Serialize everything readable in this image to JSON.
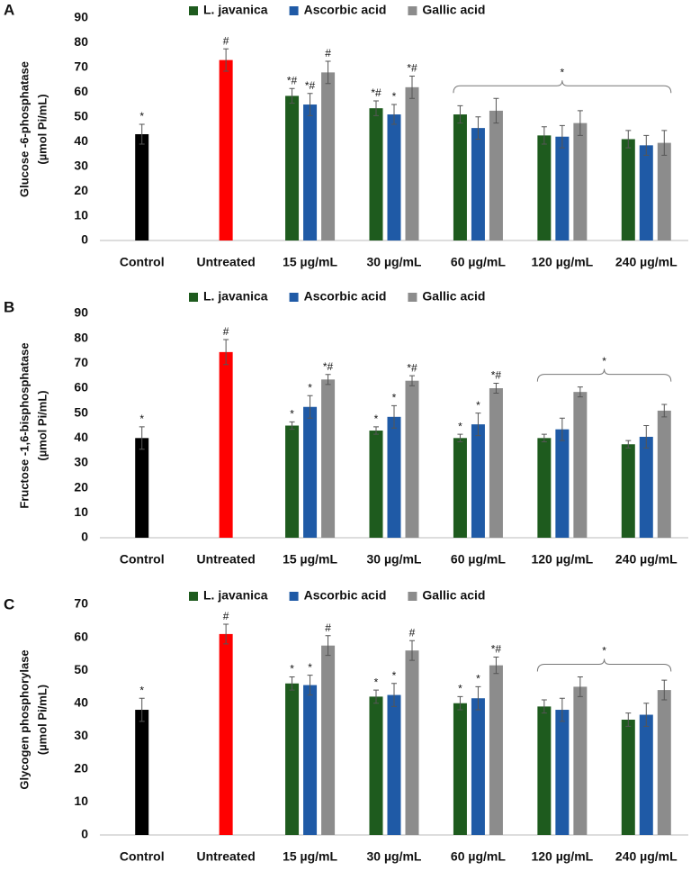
{
  "chart_data": [
    {
      "type": "bar",
      "panel": "A",
      "ylabel": [
        "Glucose -6-phosphatase",
        "(µmol Pi/mL)"
      ],
      "categories": [
        "Control",
        "Untreated",
        "15 µg/mL",
        "30 µg/mL",
        "60 µg/mL",
        "120 µg/mL",
        "240 µg/mL"
      ],
      "single": {
        "values": [
          43,
          73,
          null,
          null,
          null,
          null,
          null
        ],
        "errors": [
          4,
          4.5,
          null,
          null,
          null,
          null,
          null
        ],
        "colors": [
          "#000000",
          "#ff0000",
          null,
          null,
          null,
          null,
          null
        ],
        "annotations": [
          "*",
          "#",
          null,
          null,
          null,
          null,
          null
        ]
      },
      "series": [
        {
          "name": "L. javanica",
          "color": "#1e5b1e",
          "values": [
            null,
            null,
            58.5,
            53.5,
            51,
            42.5,
            41
          ],
          "errors": [
            null,
            null,
            3,
            3,
            3.5,
            3.5,
            3.5
          ],
          "annotations": [
            null,
            null,
            "*#",
            "*#",
            null,
            null,
            null
          ]
        },
        {
          "name": "Ascorbic acid",
          "color": "#1f5aa6",
          "values": [
            null,
            null,
            55,
            51,
            45.5,
            42,
            38.5
          ],
          "errors": [
            null,
            null,
            4.5,
            4,
            4.5,
            4.5,
            4
          ],
          "annotations": [
            null,
            null,
            "*#",
            "*",
            null,
            null,
            null
          ]
        },
        {
          "name": "Gallic acid",
          "color": "#8c8c8c",
          "values": [
            null,
            null,
            68,
            62,
            52.5,
            47.5,
            39.5
          ],
          "errors": [
            null,
            null,
            4.5,
            4.5,
            5,
            5,
            5
          ],
          "annotations": [
            null,
            null,
            "#",
            "*#",
            null,
            null,
            null
          ]
        }
      ],
      "bracket_label": "*",
      "ylim": [
        0,
        90
      ],
      "yticks": [
        0,
        10,
        20,
        30,
        40,
        50,
        60,
        70,
        80,
        90
      ]
    },
    {
      "type": "bar",
      "panel": "B",
      "ylabel": [
        "Fructose -1,6-bisphosphatase",
        "(µmol Pi/mL)"
      ],
      "categories": [
        "Control",
        "Untreated",
        "15 µg/mL",
        "30 µg/mL",
        "60 µg/mL",
        "120 µg/mL",
        "240 µg/mL"
      ],
      "single": {
        "values": [
          40,
          74.5,
          null,
          null,
          null,
          null,
          null
        ],
        "errors": [
          4.5,
          5,
          null,
          null,
          null,
          null,
          null
        ],
        "colors": [
          "#000000",
          "#ff0000",
          null,
          null,
          null,
          null,
          null
        ],
        "annotations": [
          "*",
          "#",
          null,
          null,
          null,
          null,
          null
        ]
      },
      "series": [
        {
          "name": "L. javanica",
          "color": "#1e5b1e",
          "values": [
            null,
            null,
            45,
            43,
            40,
            40,
            37.5
          ],
          "errors": [
            null,
            null,
            1.5,
            1.5,
            1.5,
            1.5,
            1.5
          ],
          "annotations": [
            null,
            null,
            "*",
            "*",
            "*",
            null,
            null
          ]
        },
        {
          "name": "Ascorbic acid",
          "color": "#1f5aa6",
          "values": [
            null,
            null,
            52.5,
            48.5,
            45.5,
            43.5,
            40.5
          ],
          "errors": [
            null,
            null,
            4.5,
            4.5,
            4.5,
            4.5,
            4.5
          ],
          "annotations": [
            null,
            null,
            "*",
            "*",
            "*",
            null,
            null
          ]
        },
        {
          "name": "Gallic acid",
          "color": "#8c8c8c",
          "values": [
            null,
            null,
            63.5,
            63,
            60,
            58.5,
            51
          ],
          "errors": [
            null,
            null,
            2,
            2,
            2,
            2,
            2.5
          ],
          "annotations": [
            null,
            null,
            "*#",
            "*#",
            "*#",
            null,
            null
          ]
        }
      ],
      "bracket_label": "*",
      "ylim": [
        0,
        90
      ],
      "yticks": [
        0,
        10,
        20,
        30,
        40,
        50,
        60,
        70,
        80,
        90
      ]
    },
    {
      "type": "bar",
      "panel": "C",
      "ylabel": [
        "Glycogen phosphorylase",
        "(µmol Pi/mL)"
      ],
      "categories": [
        "Control",
        "Untreated",
        "15 µg/mL",
        "30 µg/mL",
        "60 µg/mL",
        "120 µg/mL",
        "240 µg/mL"
      ],
      "single": {
        "values": [
          38,
          61,
          null,
          null,
          null,
          null,
          null
        ],
        "errors": [
          3.5,
          3,
          null,
          null,
          null,
          null,
          null
        ],
        "colors": [
          "#000000",
          "#ff0000",
          null,
          null,
          null,
          null,
          null
        ],
        "annotations": [
          "*",
          "#",
          null,
          null,
          null,
          null,
          null
        ]
      },
      "series": [
        {
          "name": "L. javanica",
          "color": "#1e5b1e",
          "values": [
            null,
            null,
            46,
            42,
            40,
            39,
            35
          ],
          "errors": [
            null,
            null,
            2,
            2,
            2,
            2,
            2
          ],
          "annotations": [
            null,
            null,
            "*",
            "*",
            "*",
            null,
            null
          ]
        },
        {
          "name": "Ascorbic acid",
          "color": "#1f5aa6",
          "values": [
            null,
            null,
            45.5,
            42.5,
            41.5,
            38,
            36.5
          ],
          "errors": [
            null,
            null,
            3,
            3.5,
            3.5,
            3.5,
            3.5
          ],
          "annotations": [
            null,
            null,
            "*",
            "*",
            "*",
            null,
            null
          ]
        },
        {
          "name": "Gallic acid",
          "color": "#8c8c8c",
          "values": [
            null,
            null,
            57.5,
            56,
            51.5,
            45,
            44
          ],
          "errors": [
            null,
            null,
            3,
            3,
            2.5,
            3,
            3
          ],
          "annotations": [
            null,
            null,
            "#",
            "#",
            "*#",
            null,
            null
          ]
        }
      ],
      "bracket_label": "*",
      "ylim": [
        0,
        70
      ],
      "yticks": [
        0,
        10,
        20,
        30,
        40,
        50,
        60,
        70
      ]
    }
  ]
}
